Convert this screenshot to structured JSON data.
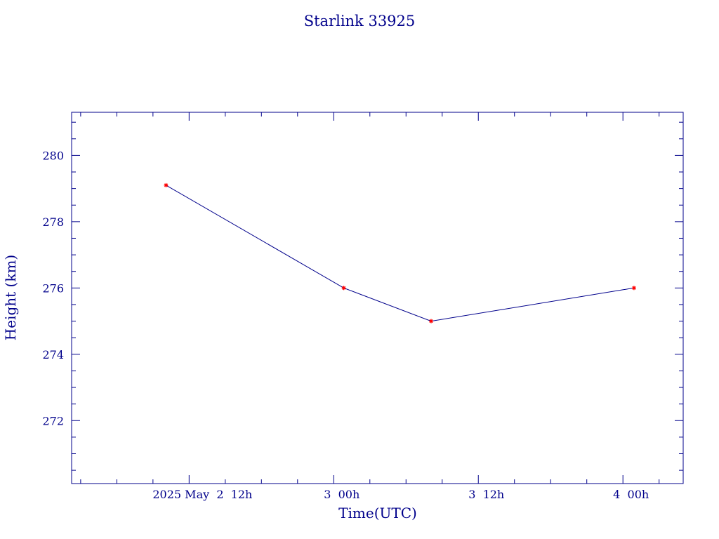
{
  "chart_data": {
    "type": "line",
    "title": "Starlink 33925",
    "xlabel": "Time(UTC)",
    "ylabel": "Height (km)",
    "x_tick_labels": [
      {
        "value": "2025-05-02T12:00Z",
        "label": "2025 May  2  12h"
      },
      {
        "value": "2025-05-03T00:00Z",
        "label": "3  00h"
      },
      {
        "value": "2025-05-03T12:00Z",
        "label": "3  12h"
      },
      {
        "value": "2025-05-04T00:00Z",
        "label": "4  00h"
      }
    ],
    "y_ticks": [
      272,
      274,
      276,
      278,
      280
    ],
    "xlim": [
      "2025-05-02T02:15Z",
      "2025-05-04T05:00Z"
    ],
    "ylim": [
      270.1,
      281.3
    ],
    "grid": false,
    "series": [
      {
        "x": [
          "2025-05-02T10:05Z",
          "2025-05-03T00:50Z",
          "2025-05-03T08:05Z",
          "2025-05-04T00:55Z"
        ],
        "y": [
          279.1,
          276.0,
          275.0,
          276.0
        ],
        "line_color": "#00008b",
        "marker_color": "#ff0000",
        "marker": "star"
      }
    ]
  }
}
